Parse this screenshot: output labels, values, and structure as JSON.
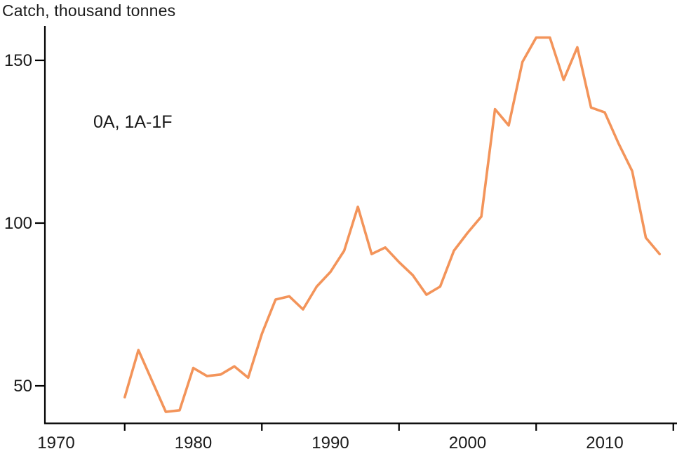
{
  "title": "Catch, thousand tonnes",
  "annotation": "0A, 1A-1F",
  "colors": {
    "line": "#F3945A",
    "axis": "#000000",
    "text": "#1a1a1a",
    "background": "#ffffff"
  },
  "chart_data": {
    "type": "line",
    "title": "Catch, thousand tonnes",
    "annotation": "0A, 1A-1F",
    "xlabel": "",
    "ylabel": "Catch, thousand tonnes",
    "grid": false,
    "legend_position": "none",
    "xlim": [
      1969.2,
      2015.4
    ],
    "ylim": [
      38.5,
      160.5
    ],
    "y_ticks": [
      50,
      100,
      150
    ],
    "y_tick_labels": [
      "50",
      "100",
      "150"
    ],
    "x_label_years": [
      1970,
      1980,
      1990,
      2000,
      2010
    ],
    "x_tick_labels": [
      "1970",
      "1980",
      "1990",
      "2000",
      "2010"
    ],
    "x_minor_tick_years": [
      1975,
      1985,
      1995,
      2005,
      2015
    ],
    "line_color": "#F3945A",
    "x": [
      1975,
      1976,
      1977,
      1978,
      1979,
      1980,
      1981,
      1982,
      1983,
      1984,
      1985,
      1986,
      1987,
      1988,
      1989,
      1990,
      1991,
      1992,
      1993,
      1994,
      1995,
      1996,
      1997,
      1998,
      1999,
      2000,
      2001,
      2002,
      2003,
      2004,
      2005,
      2006,
      2007,
      2008,
      2009,
      2010,
      2011,
      2012,
      2013,
      2014
    ],
    "values": [
      46.5,
      61,
      51.5,
      42,
      42.5,
      55.5,
      53,
      53.5,
      56,
      52.5,
      66,
      76.5,
      77.5,
      73.5,
      80.5,
      85,
      91.5,
      105,
      90.5,
      92.5,
      88,
      84,
      78,
      80.5,
      91.5,
      97,
      102,
      135,
      130,
      149.5,
      157,
      157,
      144,
      154,
      135.5,
      134,
      124.5,
      116,
      95.5,
      90.5
    ]
  }
}
